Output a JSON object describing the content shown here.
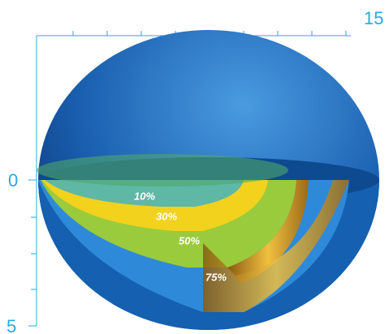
{
  "ruler": {
    "top_label": "15",
    "left_labels": [
      "0",
      "5"
    ]
  },
  "layers": [
    {
      "label": "10%"
    },
    {
      "label": "30%"
    },
    {
      "label": "50%"
    },
    {
      "label": "75%"
    }
  ]
}
